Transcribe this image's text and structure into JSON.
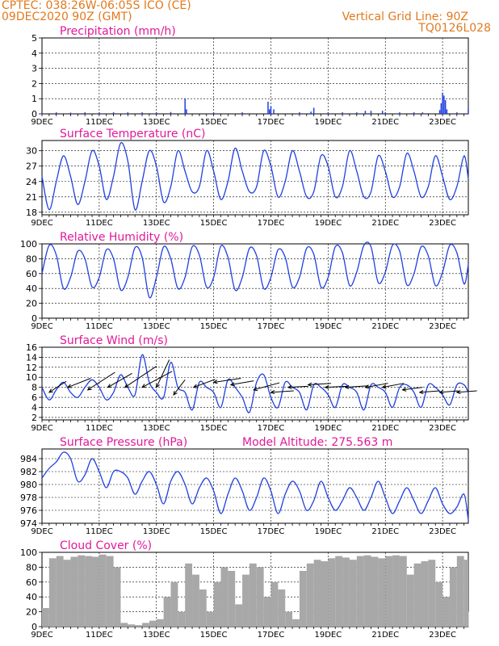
{
  "header": {
    "line1_left": "CPTEC:   038:26W-06:05S   ICO (CE)",
    "line2_left": "09DEC2020 90Z (GMT)",
    "line1_right": "Vertical Grid Line: 90Z",
    "line2_right": "TQ0126L028",
    "model_altitude": "Model Altitude: 275.563  m",
    "colors": {
      "header": "#e07a1f",
      "title": "#e0199a",
      "series": "#2040e0",
      "cloud": "#a8a8a8",
      "wind_arrow": "#000000"
    }
  },
  "x_axis": {
    "ticks": [
      "9DEC",
      "11DEC",
      "13DEC",
      "15DEC",
      "17DEC",
      "19DEC",
      "21DEC",
      "23DEC"
    ],
    "tick_days": [
      9,
      11,
      13,
      15,
      17,
      19,
      21,
      23
    ],
    "minor_day_step": 0.25,
    "range_days": [
      9,
      23.9
    ]
  },
  "chart_data": [
    {
      "id": "precip",
      "type": "bar",
      "title": "Precipitation (mm/h)",
      "ylim": [
        0,
        5
      ],
      "yticks": [
        0,
        1,
        2,
        3,
        4,
        5
      ],
      "bar_width_days": 0.02,
      "x": [
        9.0,
        9.5,
        10.0,
        10.5,
        11.0,
        11.5,
        12.0,
        12.5,
        13.0,
        13.5,
        14.0,
        14.05,
        15.0,
        16.0,
        16.9,
        16.95,
        17.0,
        17.1,
        18.0,
        18.4,
        18.5,
        19.0,
        19.5,
        20.0,
        20.3,
        20.5,
        20.9,
        21.0,
        21.5,
        22.0,
        22.3,
        22.9,
        22.95,
        23.0,
        23.05,
        23.1,
        23.15,
        23.5,
        23.9
      ],
      "values": [
        0.1,
        0.1,
        0.08,
        0.1,
        0.1,
        0.1,
        0.1,
        0.1,
        0.1,
        0.12,
        1.0,
        0.3,
        0.1,
        0.1,
        0.8,
        0.3,
        0.5,
        0.3,
        0.1,
        0.15,
        0.4,
        0.1,
        0.1,
        0.1,
        0.2,
        0.2,
        0.2,
        0.1,
        0.1,
        0.1,
        0.1,
        0.25,
        0.7,
        1.4,
        1.2,
        0.9,
        0.3,
        0.1,
        0.3
      ]
    },
    {
      "id": "temp",
      "type": "line",
      "title": "Surface Temperature (nC)",
      "ylim": [
        17.5,
        32
      ],
      "yticks": [
        18,
        21,
        24,
        27,
        30
      ],
      "x": [
        9.0,
        9.25,
        9.5,
        9.75,
        10.0,
        10.25,
        10.5,
        10.75,
        11.0,
        11.25,
        11.5,
        11.75,
        12.0,
        12.25,
        12.5,
        12.75,
        13.0,
        13.25,
        13.5,
        13.75,
        14.0,
        14.25,
        14.5,
        14.75,
        15.0,
        15.25,
        15.5,
        15.75,
        16.0,
        16.25,
        16.5,
        16.75,
        17.0,
        17.25,
        17.5,
        17.75,
        18.0,
        18.25,
        18.5,
        18.75,
        19.0,
        19.25,
        19.5,
        19.75,
        20.0,
        20.25,
        20.5,
        20.75,
        21.0,
        21.25,
        21.5,
        21.75,
        22.0,
        22.25,
        22.5,
        22.75,
        23.0,
        23.25,
        23.5,
        23.75,
        23.9
      ],
      "values": [
        25,
        18.5,
        24,
        29,
        25,
        19.5,
        24,
        30,
        27,
        20.5,
        25,
        31.5,
        28,
        18.5,
        24,
        30,
        27,
        20,
        23,
        30,
        26,
        22,
        23,
        30,
        26,
        20.5,
        24,
        30.5,
        26,
        22,
        23,
        30,
        27,
        21,
        24,
        30,
        26,
        21,
        22,
        29,
        27,
        21,
        23,
        30,
        26,
        21,
        22,
        29,
        26,
        21,
        23,
        29.5,
        26,
        21,
        23,
        29,
        25,
        20.5,
        23,
        29,
        24.5
      ]
    },
    {
      "id": "rh",
      "type": "line",
      "title": "Relative Humidity (%)",
      "ylim": [
        0,
        100
      ],
      "yticks": [
        0,
        20,
        40,
        60,
        80,
        100
      ],
      "x": [
        9.0,
        9.25,
        9.5,
        9.75,
        10.0,
        10.25,
        10.5,
        10.75,
        11.0,
        11.25,
        11.5,
        11.75,
        12.0,
        12.25,
        12.5,
        12.75,
        13.0,
        13.25,
        13.5,
        13.75,
        14.0,
        14.25,
        14.5,
        14.75,
        15.0,
        15.25,
        15.5,
        15.75,
        16.0,
        16.25,
        16.5,
        16.75,
        17.0,
        17.25,
        17.5,
        17.75,
        18.0,
        18.25,
        18.5,
        18.75,
        19.0,
        19.25,
        19.5,
        19.75,
        20.0,
        20.25,
        20.5,
        20.75,
        21.0,
        21.25,
        21.5,
        21.75,
        22.0,
        22.25,
        22.5,
        22.75,
        23.0,
        23.25,
        23.5,
        23.75,
        23.9
      ],
      "values": [
        60,
        98,
        85,
        40,
        55,
        90,
        80,
        42,
        55,
        92,
        80,
        38,
        55,
        95,
        82,
        28,
        55,
        96,
        80,
        40,
        55,
        96,
        85,
        42,
        55,
        97,
        82,
        38,
        55,
        94,
        84,
        40,
        55,
        92,
        82,
        42,
        55,
        94,
        86,
        42,
        55,
        96,
        88,
        44,
        62,
        98,
        96,
        48,
        62,
        98,
        90,
        45,
        60,
        96,
        84,
        44,
        62,
        98,
        88,
        46,
        72
      ]
    },
    {
      "id": "wind",
      "type": "line",
      "title": "Surface Wind (m/s)",
      "ylim": [
        1.5,
        16
      ],
      "yticks": [
        2,
        4,
        6,
        8,
        10,
        12,
        14,
        16
      ],
      "x": [
        9.0,
        9.25,
        9.5,
        9.75,
        10.0,
        10.25,
        10.5,
        10.75,
        11.0,
        11.25,
        11.5,
        11.75,
        12.0,
        12.25,
        12.5,
        12.75,
        13.0,
        13.25,
        13.5,
        13.75,
        14.0,
        14.25,
        14.5,
        14.75,
        15.0,
        15.25,
        15.5,
        15.75,
        16.0,
        16.25,
        16.5,
        16.75,
        17.0,
        17.25,
        17.5,
        17.75,
        18.0,
        18.25,
        18.5,
        18.75,
        19.0,
        19.25,
        19.5,
        19.75,
        20.0,
        20.25,
        20.5,
        20.75,
        21.0,
        21.25,
        21.5,
        21.75,
        22.0,
        22.25,
        22.5,
        22.75,
        23.0,
        23.25,
        23.5,
        23.75,
        23.9
      ],
      "values": [
        8,
        5.5,
        7.5,
        9,
        7,
        6,
        8,
        9.5,
        8,
        5.5,
        7,
        10.5,
        8,
        6.5,
        14.5,
        9,
        7,
        6,
        13,
        8,
        7,
        3.5,
        9,
        8,
        7,
        4,
        9.5,
        8,
        6,
        3,
        9,
        10.5,
        6,
        4,
        9,
        8,
        7,
        3.5,
        8.5,
        8,
        6.5,
        4,
        8.5,
        8,
        7,
        3.5,
        8.5,
        8,
        7,
        4,
        8,
        8.5,
        7,
        4,
        8.5,
        8,
        6.5,
        4.5,
        8.5,
        8.5,
        7
      ],
      "arrows": {
        "x": [
          9.25,
          9.9,
          10.6,
          11.3,
          11.9,
          12.5,
          13.0,
          13.6,
          14.3,
          15.0,
          15.6,
          16.4,
          17.0,
          17.6,
          18.3,
          18.9,
          19.6,
          20.3,
          20.9,
          21.6,
          22.2,
          22.9,
          23.5
        ],
        "y": [
          7.0,
          8.0,
          7.5,
          8.0,
          8.0,
          8.0,
          8.0,
          6.5,
          8.0,
          9.0,
          8.5,
          7.5,
          7.0,
          8.0,
          8.5,
          8.0,
          8.0,
          8.0,
          8.0,
          7.5,
          7.0,
          7.0,
          7.0
        ],
        "dx_days": [
          0.6,
          0.8,
          0.95,
          0.85,
          1.1,
          1.05,
          0.45,
          0.4,
          0.75,
          0.95,
          0.8,
          0.9,
          0.8,
          0.7,
          0.8,
          0.75,
          0.8,
          0.8,
          0.75,
          0.7,
          0.7,
          0.65,
          0.7
        ],
        "dy": [
          2.2,
          1.8,
          3.5,
          2.8,
          4.2,
          3.2,
          5.5,
          3.0,
          1.6,
          0.8,
          0.8,
          1.4,
          0.3,
          0.2,
          0.3,
          0.2,
          0.3,
          0.8,
          0.8,
          0.5,
          0.3,
          0.3,
          0.3
        ]
      }
    },
    {
      "id": "pres",
      "type": "line",
      "title": "Surface Pressure (hPa)",
      "ylim": [
        974,
        985.5
      ],
      "yticks": [
        974,
        976,
        978,
        980,
        982,
        984
      ],
      "x": [
        9.0,
        9.25,
        9.5,
        9.75,
        10.0,
        10.25,
        10.5,
        10.75,
        11.0,
        11.25,
        11.5,
        11.75,
        12.0,
        12.25,
        12.5,
        12.75,
        13.0,
        13.25,
        13.5,
        13.75,
        14.0,
        14.25,
        14.5,
        14.75,
        15.0,
        15.25,
        15.5,
        15.75,
        16.0,
        16.25,
        16.5,
        16.75,
        17.0,
        17.25,
        17.5,
        17.75,
        18.0,
        18.25,
        18.5,
        18.75,
        19.0,
        19.25,
        19.5,
        19.75,
        20.0,
        20.25,
        20.5,
        20.75,
        21.0,
        21.25,
        21.5,
        21.75,
        22.0,
        22.25,
        22.5,
        22.75,
        23.0,
        23.25,
        23.5,
        23.75,
        23.9
      ],
      "values": [
        981,
        982.5,
        983.5,
        985,
        984,
        980.5,
        981.5,
        984,
        982,
        979.5,
        982,
        982,
        981,
        978.5,
        980.5,
        982,
        980,
        977,
        980.5,
        982,
        980,
        977,
        979.5,
        981,
        979,
        975.5,
        978.5,
        981,
        979,
        976,
        978,
        981,
        979,
        975.5,
        978.5,
        980.5,
        979,
        976,
        977.5,
        980.5,
        978,
        976,
        977.5,
        979.5,
        978,
        976,
        978,
        980.5,
        978,
        975.5,
        977.5,
        979.5,
        977.5,
        975.5,
        977.5,
        979.5,
        977,
        975.5,
        976.5,
        978.5,
        974.5
      ]
    },
    {
      "id": "cloud",
      "type": "area",
      "title": "Cloud Cover (%)",
      "ylim": [
        0,
        100
      ],
      "yticks": [
        0,
        20,
        40,
        60,
        80,
        100
      ],
      "x": [
        9.0,
        9.25,
        9.5,
        9.75,
        10.0,
        10.25,
        10.5,
        10.75,
        11.0,
        11.25,
        11.5,
        11.75,
        12.0,
        12.25,
        12.5,
        12.75,
        13.0,
        13.25,
        13.5,
        13.75,
        14.0,
        14.25,
        14.5,
        14.75,
        15.0,
        15.25,
        15.5,
        15.75,
        16.0,
        16.25,
        16.5,
        16.75,
        17.0,
        17.25,
        17.5,
        17.75,
        18.0,
        18.25,
        18.5,
        18.75,
        19.0,
        19.25,
        19.5,
        19.75,
        20.0,
        20.25,
        20.5,
        20.75,
        21.0,
        21.25,
        21.5,
        21.75,
        22.0,
        22.25,
        22.5,
        22.75,
        23.0,
        23.25,
        23.5,
        23.75,
        23.9
      ],
      "values": [
        25,
        92,
        95,
        90,
        94,
        96,
        95,
        94,
        97,
        95,
        80,
        5,
        3,
        2,
        5,
        8,
        10,
        40,
        60,
        20,
        85,
        70,
        50,
        20,
        60,
        80,
        75,
        30,
        70,
        85,
        80,
        40,
        60,
        50,
        20,
        10,
        75,
        85,
        90,
        88,
        92,
        95,
        93,
        90,
        95,
        96,
        94,
        92,
        95,
        96,
        95,
        70,
        85,
        88,
        90,
        60,
        40,
        80,
        95,
        90,
        20
      ]
    }
  ]
}
